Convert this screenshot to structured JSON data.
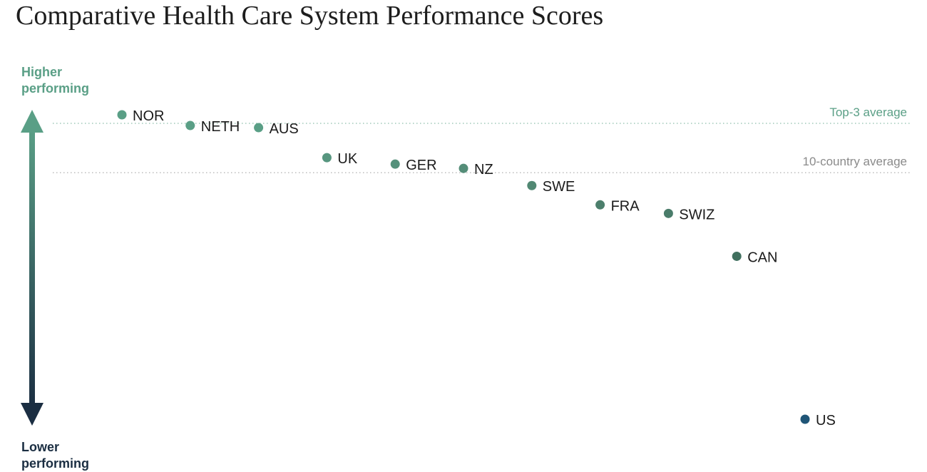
{
  "title": "Comparative Health Care System Performance Scores",
  "axis": {
    "top_label": "Higher\nperforming",
    "bottom_label": "Lower\nperforming",
    "top_color": "#5a9f86",
    "bottom_color": "#1b2e42"
  },
  "chart_data": {
    "type": "scatter",
    "title": "Comparative Health Care System Performance Scores",
    "xlabel": "",
    "ylabel": "",
    "ylim": [
      -0.9,
      0.2
    ],
    "grid": false,
    "reference_lines": [
      {
        "name": "Top-3 average",
        "value": 0.19,
        "color": "#5a9f86"
      },
      {
        "name": "10-country average",
        "value": 0.075,
        "color": "#8a8a8a"
      }
    ],
    "points": [
      {
        "label": "NOR",
        "y": 0.21,
        "color": "#5a9f86"
      },
      {
        "label": "NETH",
        "y": 0.185,
        "color": "#5a9f86"
      },
      {
        "label": "AUS",
        "y": 0.18,
        "color": "#5a9f86"
      },
      {
        "label": "UK",
        "y": 0.11,
        "color": "#57967f"
      },
      {
        "label": "GER",
        "y": 0.095,
        "color": "#55917b"
      },
      {
        "label": "NZ",
        "y": 0.085,
        "color": "#548d78"
      },
      {
        "label": "SWE",
        "y": 0.045,
        "color": "#518873"
      },
      {
        "label": "FRA",
        "y": 0.0,
        "color": "#4c7f6c"
      },
      {
        "label": "SWIZ",
        "y": -0.02,
        "color": "#4a7c6a"
      },
      {
        "label": "CAN",
        "y": -0.12,
        "color": "#41705f"
      },
      {
        "label": "US",
        "y": -0.5,
        "color": "#1f5577"
      }
    ]
  }
}
